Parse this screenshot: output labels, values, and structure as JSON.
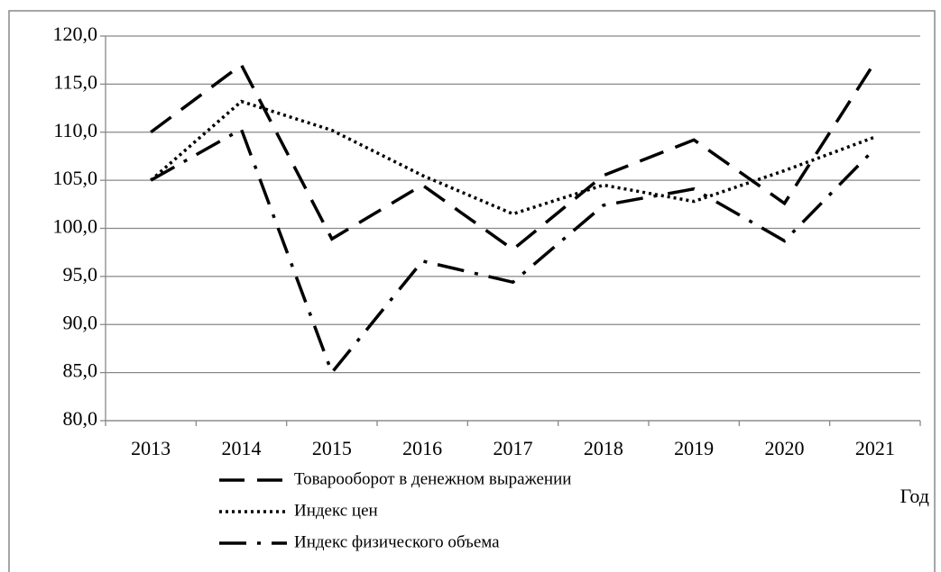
{
  "chart_data": {
    "type": "line",
    "categories": [
      "2013",
      "2014",
      "2015",
      "2016",
      "2017",
      "2018",
      "2019",
      "2020",
      "2021"
    ],
    "series": [
      {
        "name": "Товарооборот в денежном выражении",
        "color": "#000000",
        "style": "dashed",
        "values": [
          110.0,
          117.0,
          98.9,
          104.5,
          97.8,
          105.5,
          109.2,
          102.6,
          117.3
        ]
      },
      {
        "name": "Индекс цен",
        "color": "#000000",
        "style": "dotted",
        "values": [
          105.0,
          113.2,
          110.2,
          105.5,
          101.5,
          104.5,
          102.8,
          106.0,
          109.5
        ]
      },
      {
        "name": "Индекс физического объема",
        "color": "#000000",
        "style": "dashdot",
        "values": [
          105.0,
          110.3,
          85.0,
          96.6,
          94.4,
          102.4,
          104.1,
          98.7,
          108.3
        ]
      }
    ],
    "xlabel": "Год",
    "ylim": [
      80,
      120
    ],
    "yticks": [
      {
        "value": 80,
        "label": "80,0"
      },
      {
        "value": 85,
        "label": "85,0"
      },
      {
        "value": 90,
        "label": "90,0"
      },
      {
        "value": 95,
        "label": "95,0"
      },
      {
        "value": 100,
        "label": "100,0"
      },
      {
        "value": 105,
        "label": "105,0"
      },
      {
        "value": 110,
        "label": "110,0"
      },
      {
        "value": 115,
        "label": "115,0"
      },
      {
        "value": 120,
        "label": "120,0"
      }
    ],
    "grid": true,
    "legend": "bottom"
  }
}
